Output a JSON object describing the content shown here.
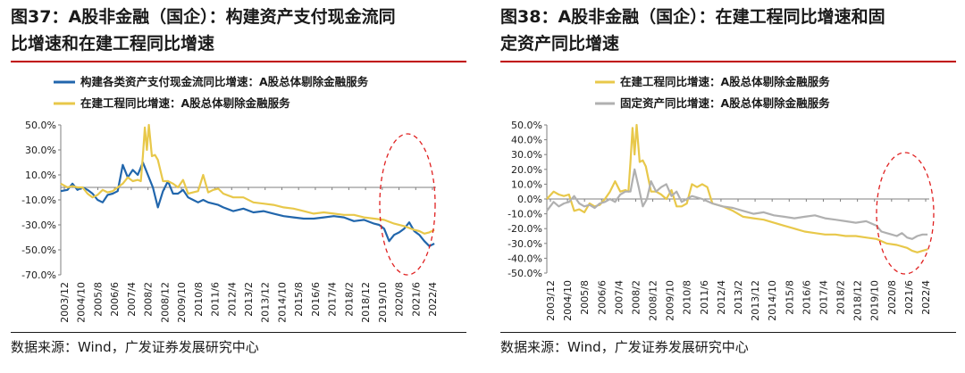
{
  "source_text": "数据来源：Wind，广发证券发展研究中心",
  "chart_data": [
    {
      "type": "line",
      "title": "图37：A股非金融（国企）：构建资产支付现金流同比增速和在建工程同比增速",
      "title_lines": [
        "图37：A股非金融（国企）：构建资产支付现金流同",
        "比增速和在建工程同比增速"
      ],
      "ylim": [
        -70,
        50
      ],
      "yticks": [
        "50.0%",
        "30.0%",
        "10.0%",
        "-10.0%",
        "-30.0%",
        "-50.0%",
        "-70.0%"
      ],
      "ytick_values": [
        50,
        30,
        10,
        -10,
        -30,
        -50,
        -70
      ],
      "xticks": [
        "2003/12",
        "2004/10",
        "2005/8",
        "2006/6",
        "2007/4",
        "2008/2",
        "2008/12",
        "2009/10",
        "2010/8",
        "2011/6",
        "2012/4",
        "2013/2",
        "2013/12",
        "2014/10",
        "2015/8",
        "2016/6",
        "2017/4",
        "2018/2",
        "2018/12",
        "2019/10",
        "2020/8",
        "2021/6",
        "2022/4"
      ],
      "x_range": [
        2003.917,
        2022.583
      ],
      "legend_position": "top-left",
      "grid": false,
      "annotation": "red dashed ellipse around 2020–2022",
      "series": [
        {
          "name": "构建各类资产支付现金流同比增速：A股总体剔除金融服务",
          "color": "#2166ac",
          "x": [
            2003.917,
            2004.25,
            2004.5,
            2004.75,
            2005.0,
            2005.25,
            2005.5,
            2005.75,
            2006.0,
            2006.25,
            2006.5,
            2006.75,
            2007.0,
            2007.25,
            2007.5,
            2007.75,
            2008.0,
            2008.25,
            2008.5,
            2008.75,
            2009.0,
            2009.25,
            2009.5,
            2009.75,
            2010.0,
            2010.25,
            2010.5,
            2010.75,
            2011.0,
            2011.25,
            2011.5,
            2011.75,
            2012.0,
            2012.5,
            2013.0,
            2013.5,
            2014.0,
            2014.5,
            2015.0,
            2015.5,
            2016.0,
            2016.5,
            2017.0,
            2017.5,
            2018.0,
            2018.5,
            2019.0,
            2019.5,
            2019.75,
            2020.0,
            2020.25,
            2020.5,
            2020.75,
            2021.0,
            2021.25,
            2021.5,
            2021.75,
            2022.0,
            2022.25,
            2022.5
          ],
          "y": [
            -3,
            -2,
            3,
            -2,
            0,
            -2,
            -5,
            -10,
            -12,
            -6,
            -5,
            -3,
            18,
            8,
            14,
            10,
            20,
            10,
            0,
            -16,
            -3,
            5,
            -5,
            -5,
            -2,
            -8,
            -10,
            -12,
            -10,
            -12,
            -13,
            -14,
            -16,
            -19,
            -17,
            -20,
            -19,
            -21,
            -23,
            -24,
            -25,
            -25,
            -24,
            -23,
            -24,
            -27,
            -26,
            -29,
            -30,
            -33,
            -43,
            -38,
            -36,
            -33,
            -28,
            -35,
            -38,
            -43,
            -47,
            -45
          ]
        },
        {
          "name": "在建工程同比增速：A股总体剔除金融服务",
          "color": "#e8c84a",
          "x": [
            2003.917,
            2004.25,
            2004.5,
            2004.75,
            2005.0,
            2005.25,
            2005.5,
            2005.75,
            2006.0,
            2006.25,
            2006.5,
            2006.75,
            2007.0,
            2007.25,
            2007.5,
            2007.75,
            2007.9,
            2008.0,
            2008.1,
            2008.2,
            2008.3,
            2008.45,
            2008.6,
            2008.75,
            2009.0,
            2009.25,
            2009.5,
            2009.75,
            2010.0,
            2010.25,
            2010.5,
            2010.75,
            2011.0,
            2011.25,
            2011.5,
            2011.75,
            2012.0,
            2012.5,
            2013.0,
            2013.5,
            2014.0,
            2014.5,
            2015.0,
            2015.5,
            2016.0,
            2016.5,
            2017.0,
            2017.5,
            2018.0,
            2018.5,
            2019.0,
            2019.5,
            2020.0,
            2020.5,
            2021.0,
            2021.5,
            2021.75,
            2022.0,
            2022.25,
            2022.5
          ],
          "y": [
            3,
            0,
            1,
            0,
            0,
            -5,
            -8,
            -6,
            -2,
            -4,
            -3,
            0,
            3,
            8,
            5,
            6,
            5,
            25,
            48,
            30,
            50,
            25,
            26,
            22,
            5,
            5,
            3,
            0,
            6,
            -5,
            -4,
            -3,
            10,
            -4,
            -2,
            -1,
            -5,
            -8,
            -8,
            -12,
            -13,
            -14,
            -16,
            -17,
            -19,
            -21,
            -20,
            -21,
            -22,
            -22,
            -24,
            -25,
            -26,
            -29,
            -31,
            -34,
            -35,
            -37,
            -36,
            -34
          ]
        }
      ]
    },
    {
      "type": "line",
      "title": "图38：A股非金融（国企）：在建工程同比增速和固定资产同比增速",
      "title_lines": [
        "图38：A股非金融（国企）：在建工程同比增速和固",
        "定资产同比增速"
      ],
      "ylim": [
        -50,
        50
      ],
      "yticks": [
        "50.0%",
        "40.0%",
        "30.0%",
        "20.0%",
        "10.0%",
        "0.0%",
        "-10.0%",
        "-20.0%",
        "-30.0%",
        "-40.0%",
        "-50.0%"
      ],
      "ytick_values": [
        50,
        40,
        30,
        20,
        10,
        0,
        -10,
        -20,
        -30,
        -40,
        -50
      ],
      "xticks": [
        "2003/12",
        "2004/10",
        "2005/8",
        "2006/6",
        "2007/4",
        "2008/2",
        "2008/12",
        "2009/10",
        "2010/8",
        "2011/6",
        "2012/4",
        "2013/2",
        "2013/12",
        "2014/10",
        "2015/8",
        "2016/6",
        "2017/4",
        "2018/2",
        "2018/12",
        "2019/10",
        "2020/8",
        "2021/6",
        "2022/4"
      ],
      "x_range": [
        2003.917,
        2022.583
      ],
      "legend_position": "top-left",
      "grid": false,
      "annotation": "red dashed ellipse around 2020–2022",
      "series": [
        {
          "name": "在建工程同比增速：A股总体剔除金融服务",
          "color": "#e8c84a",
          "x": [
            2003.917,
            2004.25,
            2004.5,
            2004.75,
            2005.0,
            2005.25,
            2005.5,
            2005.75,
            2006.0,
            2006.25,
            2006.5,
            2006.75,
            2007.0,
            2007.25,
            2007.5,
            2007.75,
            2007.9,
            2008.0,
            2008.1,
            2008.2,
            2008.3,
            2008.45,
            2008.6,
            2008.75,
            2009.0,
            2009.25,
            2009.5,
            2009.75,
            2010.0,
            2010.25,
            2010.5,
            2010.75,
            2011.0,
            2011.25,
            2011.5,
            2011.75,
            2012.0,
            2012.5,
            2013.0,
            2013.5,
            2014.0,
            2014.5,
            2015.0,
            2015.5,
            2016.0,
            2016.5,
            2017.0,
            2017.5,
            2018.0,
            2018.5,
            2019.0,
            2019.5,
            2020.0,
            2020.5,
            2021.0,
            2021.5,
            2021.75,
            2022.0,
            2022.25,
            2022.5
          ],
          "y": [
            0,
            5,
            3,
            2,
            3,
            -8,
            -7,
            -9,
            -3,
            -5,
            -4,
            0,
            5,
            12,
            5,
            6,
            5,
            25,
            48,
            30,
            50,
            25,
            26,
            22,
            5,
            5,
            3,
            0,
            6,
            -5,
            -5,
            -3,
            10,
            8,
            10,
            8,
            -3,
            -5,
            -8,
            -12,
            -13,
            -14,
            -16,
            -18,
            -20,
            -22,
            -23,
            -24,
            -24,
            -25,
            -25,
            -26,
            -27,
            -30,
            -31,
            -33,
            -35,
            -36,
            -35,
            -34
          ]
        },
        {
          "name": "固定资产同比增速：A股总体剔除金融服务",
          "color": "#b0b0b0",
          "x": [
            2003.917,
            2004.25,
            2004.5,
            2004.75,
            2005.0,
            2005.25,
            2005.5,
            2005.75,
            2006.0,
            2006.25,
            2006.5,
            2006.75,
            2007.0,
            2007.25,
            2007.5,
            2007.75,
            2008.0,
            2008.2,
            2008.4,
            2008.6,
            2008.8,
            2009.0,
            2009.25,
            2009.5,
            2009.75,
            2010.0,
            2010.25,
            2010.5,
            2010.75,
            2011.0,
            2011.5,
            2012.0,
            2012.5,
            2013.0,
            2013.5,
            2014.0,
            2014.5,
            2015.0,
            2015.5,
            2016.0,
            2016.5,
            2017.0,
            2017.5,
            2018.0,
            2018.5,
            2019.0,
            2019.5,
            2020.0,
            2020.25,
            2020.5,
            2020.75,
            2021.0,
            2021.25,
            2021.5,
            2021.75,
            2022.0,
            2022.25,
            2022.5
          ],
          "y": [
            -8,
            -2,
            -5,
            -3,
            -2,
            2,
            -3,
            -5,
            -4,
            -6,
            -3,
            -2,
            0,
            -2,
            3,
            5,
            5,
            20,
            8,
            -5,
            0,
            12,
            5,
            8,
            10,
            2,
            5,
            -2,
            0,
            2,
            0,
            -3,
            -5,
            -6,
            -8,
            -10,
            -9,
            -11,
            -12,
            -13,
            -12,
            -11,
            -13,
            -14,
            -15,
            -16,
            -15,
            -18,
            -22,
            -23,
            -24,
            -25,
            -23,
            -26,
            -27,
            -25,
            -24,
            -24
          ]
        }
      ]
    }
  ]
}
